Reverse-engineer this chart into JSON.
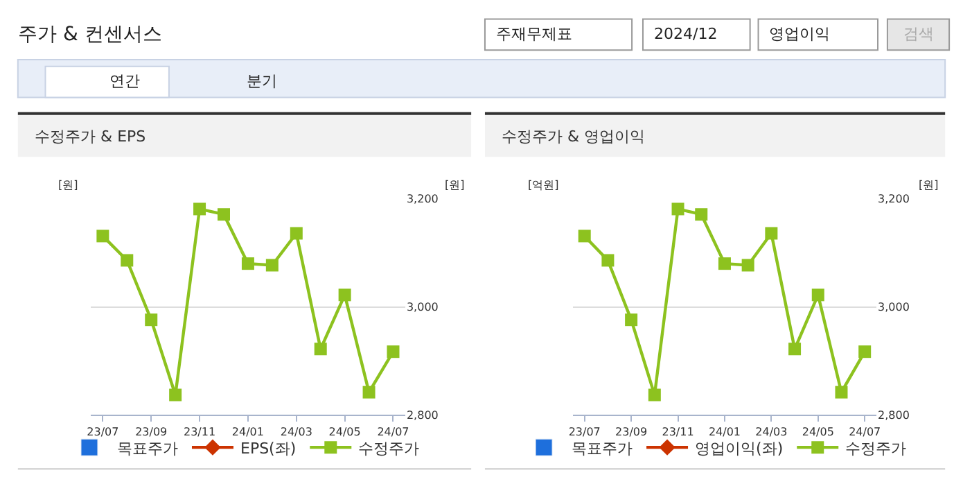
{
  "chart_data": [
    {
      "type": "other",
      "title": "주가 & 컨센서스",
      "annotations": [
        "주재무제표",
        "2024/12",
        "영업이익",
        "검색",
        "연간",
        "분기"
      ]
    },
    {
      "type": "line",
      "title": "수정주가 & EPS",
      "ylabel": "[원]",
      "y2label": "[원]",
      "categories": [
        "23/07",
        null,
        "23/09",
        null,
        "23/11",
        null,
        "24/01",
        null,
        "24/03",
        null,
        "24/05",
        null,
        "24/07"
      ],
      "series": [
        {
          "name": "목표주가",
          "type": "bar",
          "color": "#1e6fdc",
          "values": [
            null,
            null,
            null,
            null,
            null,
            null,
            null,
            null,
            null,
            null,
            null,
            null,
            null
          ]
        },
        {
          "name": "EPS(좌)",
          "type": "line",
          "marker": "diamond",
          "color": "#cc3300",
          "values": [
            null,
            null,
            null,
            null,
            null,
            null,
            null,
            null,
            null,
            null,
            null,
            null,
            null
          ]
        },
        {
          "name": "수정주가",
          "type": "line",
          "marker": "square",
          "axis": "y2",
          "color": "#8dc21f",
          "values": [
            3131,
            3086,
            2976,
            2837,
            3181,
            3171,
            3080,
            3077,
            3136,
            2922,
            3022,
            2842,
            2917
          ]
        }
      ],
      "y2lim": [
        2800,
        3200
      ],
      "y2ticks": [
        {
          "value": 2800,
          "label": "2,800"
        },
        {
          "value": 3000,
          "label": "3,000"
        },
        {
          "value": 3200,
          "label": "3,200"
        }
      ],
      "grid": "y",
      "legend": "bottom",
      "line_style": "solid"
    },
    {
      "type": "line",
      "title": "수정주가 & 영업이익",
      "ylabel": "[억원]",
      "y2label": "[원]",
      "categories": [
        "23/07",
        null,
        "23/09",
        null,
        "23/11",
        null,
        "24/01",
        null,
        "24/03",
        null,
        "24/05",
        null,
        "24/07"
      ],
      "series": [
        {
          "name": "목표주가",
          "type": "bar",
          "color": "#1e6fdc",
          "values": [
            null,
            null,
            null,
            null,
            null,
            null,
            null,
            null,
            null,
            null,
            null,
            null,
            null
          ]
        },
        {
          "name": "영업이익(좌)",
          "type": "line",
          "marker": "diamond",
          "color": "#cc3300",
          "values": [
            null,
            null,
            null,
            null,
            null,
            null,
            null,
            null,
            null,
            null,
            null,
            null,
            null
          ]
        },
        {
          "name": "수정주가",
          "type": "line",
          "marker": "square",
          "axis": "y2",
          "color": "#8dc21f",
          "values": [
            3131,
            3086,
            2976,
            2837,
            3181,
            3171,
            3080,
            3077,
            3136,
            2922,
            3022,
            2842,
            2917
          ]
        }
      ],
      "y2lim": [
        2800,
        3200
      ],
      "y2ticks": [
        {
          "value": 2800,
          "label": "2,800"
        },
        {
          "value": 3000,
          "label": "3,000"
        },
        {
          "value": 3200,
          "label": "3,200"
        }
      ],
      "grid": "y",
      "legend": "bottom",
      "line_style": "solid"
    }
  ]
}
